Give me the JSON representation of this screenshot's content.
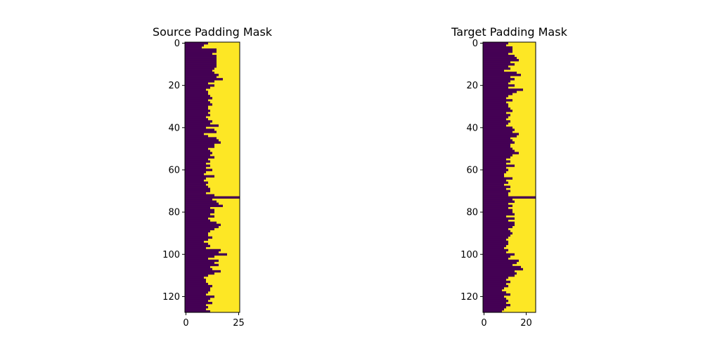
{
  "figure": {
    "background": "#ffffff"
  },
  "chart_data": [
    {
      "type": "heatmap",
      "title": "Source Padding Mask",
      "xlabel": "",
      "ylabel": "",
      "rows": 128,
      "cols": 26,
      "xlim": [
        -0.5,
        25.5
      ],
      "ylim": [
        127.5,
        -0.5
      ],
      "x_ticks": [
        0,
        25
      ],
      "y_ticks": [
        0,
        20,
        40,
        60,
        80,
        100,
        120
      ],
      "colormap": "viridis",
      "colors": {
        "unpadded": "#440154",
        "padded": "#fde725"
      },
      "legend": "none",
      "grid": false,
      "row_valid_lengths": [
        11,
        9,
        8,
        15,
        15,
        13,
        15,
        15,
        15,
        15,
        15,
        15,
        14,
        13,
        14,
        16,
        15,
        18,
        14,
        11,
        14,
        12,
        10,
        11,
        11,
        12,
        13,
        11,
        12,
        13,
        11,
        11,
        12,
        11,
        12,
        10,
        11,
        13,
        12,
        16,
        10,
        14,
        15,
        9,
        11,
        15,
        16,
        17,
        14,
        14,
        11,
        12,
        13,
        12,
        14,
        11,
        12,
        10,
        12,
        10,
        13,
        10,
        9,
        14,
        10,
        9,
        11,
        10,
        11,
        12,
        12,
        10,
        14,
        26,
        13,
        15,
        16,
        18,
        12,
        14,
        14,
        12,
        14,
        11,
        12,
        15,
        17,
        16,
        14,
        12,
        11,
        11,
        13,
        11,
        9,
        11,
        12,
        10,
        17,
        16,
        20,
        14,
        11,
        16,
        14,
        16,
        12,
        13,
        17,
        14,
        11,
        9,
        10,
        10,
        11,
        13,
        12,
        12,
        11,
        10,
        14,
        12,
        11,
        13,
        10,
        11,
        10,
        12
      ]
    },
    {
      "type": "heatmap",
      "title": "Target Padding Mask",
      "xlabel": "",
      "ylabel": "",
      "rows": 128,
      "cols": 25,
      "xlim": [
        -0.5,
        24.5
      ],
      "ylim": [
        127.5,
        -0.5
      ],
      "x_ticks": [
        0,
        20
      ],
      "y_ticks": [
        0,
        20,
        40,
        60,
        80,
        100,
        120
      ],
      "colormap": "viridis",
      "colors": {
        "unpadded": "#440154",
        "padded": "#fde725"
      },
      "legend": "none",
      "grid": false,
      "row_valid_lengths": [
        12,
        11,
        14,
        14,
        14,
        12,
        15,
        16,
        17,
        13,
        15,
        12,
        13,
        10,
        16,
        18,
        13,
        15,
        13,
        12,
        15,
        12,
        19,
        16,
        14,
        12,
        11,
        14,
        11,
        12,
        12,
        13,
        14,
        11,
        13,
        12,
        11,
        13,
        12,
        11,
        14,
        15,
        14,
        17,
        16,
        13,
        14,
        15,
        13,
        13,
        14,
        15,
        17,
        14,
        13,
        11,
        13,
        11,
        15,
        11,
        12,
        11,
        10,
        10,
        14,
        11,
        12,
        10,
        13,
        11,
        13,
        12,
        12,
        25,
        14,
        15,
        12,
        14,
        12,
        14,
        14,
        15,
        11,
        15,
        12,
        15,
        15,
        14,
        12,
        13,
        14,
        13,
        12,
        11,
        12,
        12,
        11,
        10,
        12,
        11,
        15,
        13,
        12,
        17,
        16,
        14,
        18,
        19,
        15,
        16,
        15,
        12,
        11,
        13,
        11,
        12,
        10,
        9,
        11,
        13,
        10,
        11,
        12,
        11,
        13,
        11,
        10,
        9
      ]
    }
  ]
}
